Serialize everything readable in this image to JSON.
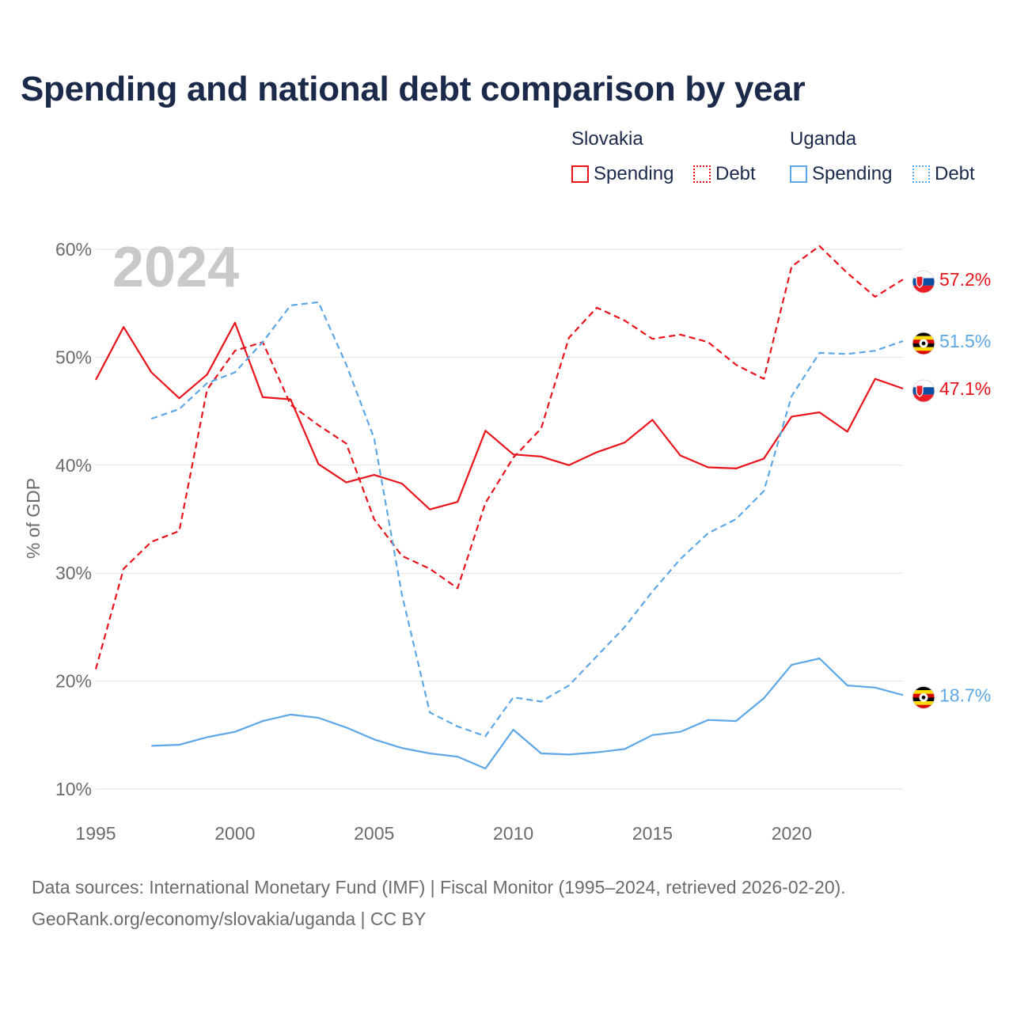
{
  "title": "Spending and national debt comparison by year",
  "legend": {
    "groups": [
      {
        "country": "Slovakia",
        "color": "#e8141c",
        "items": [
          "Spending",
          "Debt"
        ]
      },
      {
        "country": "Uganda",
        "color": "#5ea7e6",
        "items": [
          "Spending",
          "Debt"
        ]
      }
    ]
  },
  "footer": {
    "line1": "Data sources: International Monetary Fund (IMF) | Fiscal Monitor (1995–2024, retrieved 2026-02-20).",
    "line2": "GeoRank.org/economy/slovakia/uganda | CC BY"
  },
  "chart_data": {
    "type": "line",
    "ylabel": "% of GDP",
    "xlim": [
      1995,
      2024
    ],
    "ylim": [
      10,
      60
    ],
    "yticks": [
      10,
      20,
      30,
      40,
      50,
      60
    ],
    "ytick_labels": [
      "10%",
      "20%",
      "30%",
      "40%",
      "50%",
      "60%"
    ],
    "xticks": [
      1995,
      2000,
      2005,
      2010,
      2015,
      2020
    ],
    "xtick_labels": [
      "1995",
      "2000",
      "2005",
      "2010",
      "2015",
      "2020"
    ],
    "year_watermark": "2024",
    "series": [
      {
        "name": "Slovakia Spending",
        "country": "Slovakia",
        "kind": "spending",
        "color": "#e8141c",
        "dashed": false,
        "start": 1995,
        "values": [
          47.9,
          52.8,
          48.6,
          46.2,
          48.4,
          53.2,
          46.3,
          46.1,
          40.1,
          38.4,
          39.1,
          38.3,
          35.9,
          36.6,
          43.2,
          41.0,
          40.8,
          40.0,
          41.2,
          42.1,
          44.2,
          40.9,
          39.8,
          39.7,
          40.6,
          44.5,
          44.9,
          43.1,
          48.0,
          47.1
        ],
        "end_label": "47.1%"
      },
      {
        "name": "Slovakia Debt",
        "country": "Slovakia",
        "kind": "debt",
        "color": "#e8141c",
        "dashed": true,
        "start": 1995,
        "values": [
          21.1,
          30.4,
          32.9,
          33.9,
          47.0,
          50.6,
          51.4,
          45.6,
          43.7,
          42.0,
          35.0,
          31.6,
          30.4,
          28.6,
          36.5,
          40.7,
          43.4,
          51.8,
          54.6,
          53.4,
          51.7,
          52.1,
          51.4,
          49.3,
          48.0,
          58.4,
          60.3,
          57.8,
          55.6,
          57.2
        ],
        "end_label": "57.2%"
      },
      {
        "name": "Uganda Spending",
        "country": "Uganda",
        "kind": "spending",
        "color": "#5ea7e6",
        "dashed": false,
        "start": 1997,
        "values": [
          14.0,
          14.1,
          14.8,
          15.3,
          16.3,
          16.9,
          16.6,
          15.7,
          14.6,
          13.8,
          13.3,
          13.0,
          11.9,
          15.5,
          13.3,
          13.2,
          13.4,
          13.7,
          15.0,
          15.3,
          16.4,
          16.3,
          18.4,
          21.5,
          22.1,
          19.6,
          19.4,
          18.7
        ],
        "end_label": "18.7%"
      },
      {
        "name": "Uganda Debt",
        "country": "Uganda",
        "kind": "debt",
        "color": "#5ea7e6",
        "dashed": true,
        "start": 1997,
        "values": [
          44.3,
          45.2,
          47.6,
          48.6,
          51.4,
          54.8,
          55.1,
          49.3,
          42.5,
          28.0,
          17.1,
          15.8,
          14.9,
          18.5,
          18.1,
          19.6,
          22.3,
          25.0,
          28.3,
          31.3,
          33.7,
          35.0,
          37.6,
          46.4,
          50.4,
          50.3,
          50.6,
          51.5
        ],
        "end_label": "51.5%"
      }
    ]
  }
}
